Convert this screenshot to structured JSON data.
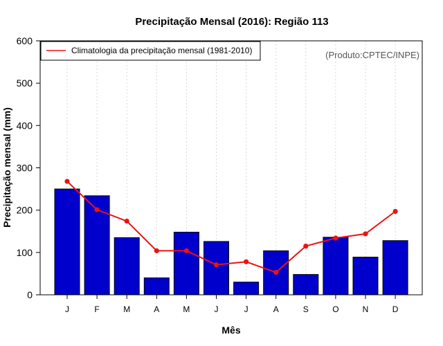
{
  "chart_data": {
    "type": "bar",
    "title": "Precipitação Mensal (2016): Região 113",
    "xlabel": "Mês",
    "ylabel": "Precipitação mensal (mm)",
    "ylim": [
      0,
      600
    ],
    "yticks": [
      0,
      100,
      200,
      300,
      400,
      500,
      600
    ],
    "categories": [
      "J",
      "F",
      "M",
      "A",
      "M",
      "J",
      "J",
      "A",
      "S",
      "O",
      "N",
      "D"
    ],
    "series": [
      {
        "name": "Precipitação mensal 2016",
        "kind": "bar",
        "color": "#0000CC",
        "values": [
          250,
          234,
          135,
          40,
          148,
          126,
          30,
          104,
          48,
          136,
          89,
          128
        ]
      },
      {
        "name": "Climatologia da precipitação mensal (1981-2010)",
        "kind": "line",
        "color": "#EE1111",
        "values": [
          268,
          201,
          174,
          104,
          104,
          71,
          78,
          53,
          115,
          134,
          144,
          197
        ]
      }
    ],
    "legend": {
      "position": "top-left",
      "entries": [
        "Climatologia da precipitação mensal (1981-2010)"
      ]
    },
    "grid": "vertical dotted",
    "annotation": "(Produto:CPTEC/INPE)"
  }
}
